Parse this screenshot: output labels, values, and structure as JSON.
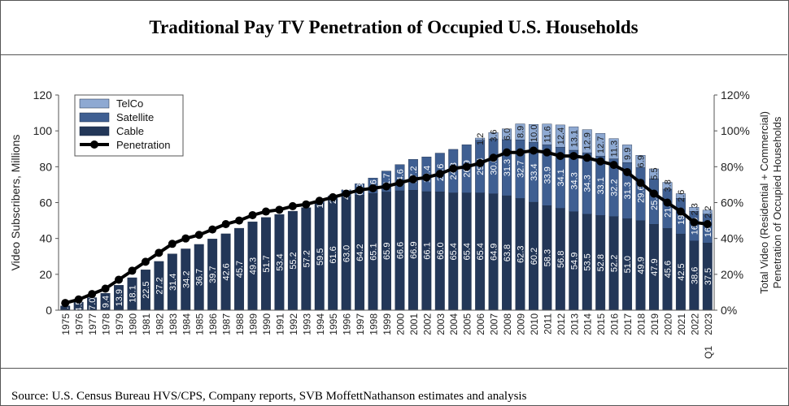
{
  "title": "Traditional Pay TV Penetration of Occupied U.S. Households",
  "source": "Source: U.S. Census Bureau HVS/CPS, Company reports, SVB MoffettNathanson estimates and analysis",
  "colors": {
    "cable": "#233758",
    "satellite": "#3f5f92",
    "telco": "#8ea9d2",
    "penetration": "#000000"
  },
  "chart_data": {
    "type": "bar",
    "title": "Traditional Pay TV Penetration of Occupied U.S. Households",
    "ylabel": "Video Subscribers, Millions",
    "y2label": [
      "Total Video (Residential + Commercial)",
      "Penetration of Occupied Households"
    ],
    "ylim": [
      0,
      120
    ],
    "y2lim": [
      0,
      1.2
    ],
    "yticks": [
      "0",
      "20",
      "40",
      "60",
      "80",
      "100",
      "120"
    ],
    "y2ticks": [
      "0%",
      "20%",
      "40%",
      "60%",
      "80%",
      "100%",
      "120%"
    ],
    "stacked": true,
    "legend_position": "top-left",
    "categories": [
      "1975",
      "1976",
      "1977",
      "1978",
      "1979",
      "1980",
      "1981",
      "1982",
      "1983",
      "1984",
      "1985",
      "1986",
      "1987",
      "1988",
      "1989",
      "1990",
      "1991",
      "1992",
      "1993",
      "1994",
      "1995",
      "1996",
      "1997",
      "1998",
      "1999",
      "2000",
      "2001",
      "2002",
      "2003",
      "2004",
      "2005",
      "2006",
      "2007",
      "2008",
      "2009",
      "2010",
      "2011",
      "2012",
      "2013",
      "2014",
      "2015",
      "2016",
      "2017",
      "2018",
      "2019",
      "2020",
      "2021",
      "2022",
      "Q1 2023"
    ],
    "series": [
      {
        "name": "Cable",
        "values": [
          2.4,
          4.5,
          7.0,
          9.4,
          13.9,
          18.1,
          22.5,
          27.2,
          31.4,
          34.2,
          36.7,
          39.7,
          42.6,
          45.7,
          49.3,
          51.7,
          53.4,
          55.2,
          57.2,
          59.5,
          61.6,
          63.0,
          64.2,
          65.1,
          65.9,
          66.6,
          66.9,
          66.1,
          66.0,
          65.4,
          65.4,
          65.4,
          64.9,
          63.8,
          62.3,
          60.2,
          58.3,
          56.8,
          54.9,
          53.5,
          52.8,
          52.2,
          51.0,
          49.9,
          47.9,
          45.6,
          42.5,
          38.6,
          37.5
        ]
      },
      {
        "name": "Satellite",
        "values": [
          0,
          0,
          0,
          0,
          0,
          0,
          0,
          0,
          0,
          0,
          0,
          0,
          0,
          0,
          0,
          0,
          0,
          0,
          0,
          1.5,
          2.2,
          4.1,
          6.3,
          8.6,
          11.7,
          14.6,
          17.2,
          19.4,
          21.6,
          24.3,
          26.9,
          29.4,
          30.6,
          31.3,
          32.7,
          33.4,
          33.9,
          34.1,
          34.3,
          34.3,
          33.1,
          32.2,
          31.3,
          29.6,
          25.4,
          21.9,
          19.9,
          16.5,
          16.1
        ]
      },
      {
        "name": "TelCo",
        "values": [
          0,
          0,
          0,
          0,
          0,
          0,
          0,
          0,
          0,
          0,
          0,
          0,
          0,
          0,
          0,
          0,
          0,
          0,
          0,
          0,
          0,
          0,
          0,
          0,
          0,
          0,
          0,
          0,
          0,
          0,
          0,
          1.2,
          3.6,
          6.0,
          8.9,
          10.0,
          11.6,
          12.4,
          13.1,
          12.9,
          12.7,
          11.3,
          9.9,
          6.9,
          5.5,
          3.8,
          2.6,
          2.3,
          2.2
        ]
      },
      {
        "name": "Penetration",
        "values": [
          0.04,
          0.06,
          0.09,
          0.12,
          0.17,
          0.22,
          0.27,
          0.32,
          0.37,
          0.4,
          0.42,
          0.45,
          0.48,
          0.5,
          0.53,
          0.55,
          0.56,
          0.58,
          0.59,
          0.61,
          0.63,
          0.65,
          0.67,
          0.68,
          0.69,
          0.71,
          0.73,
          0.74,
          0.76,
          0.79,
          0.8,
          0.82,
          0.85,
          0.88,
          0.88,
          0.89,
          0.88,
          0.86,
          0.86,
          0.85,
          0.83,
          0.81,
          0.77,
          0.71,
          0.65,
          0.6,
          0.55,
          0.49,
          0.48
        ]
      }
    ],
    "bar_labels": {
      "Cable": [
        "2.4",
        "4.5",
        "7.0",
        "9.4",
        "13.9",
        "18.1",
        "22.5",
        "27.2",
        "31.4",
        "34.2",
        "36.7",
        "39.7",
        "42.6",
        "45.7",
        "49.3",
        "51.7",
        "53.4",
        "55.2",
        "57.2",
        "59.5",
        "61.6",
        "63.0",
        "64.2",
        "65.1",
        "65.9",
        "66.6",
        "66.9",
        "66.1",
        "66.0",
        "65.4",
        "65.4",
        "65.4",
        "64.9",
        "63.8",
        "62.3",
        "60.2",
        "58.3",
        "56.8",
        "54.9",
        "53.5",
        "52.8",
        "52.2",
        "51.0",
        "49.9",
        "47.9",
        "45.6",
        "42.5",
        "38.6",
        "37.5"
      ],
      "Satellite": [
        "",
        "",
        "",
        "",
        "",
        "",
        "",
        "",
        "",
        "",
        "",
        "",
        "",
        "",
        "",
        "",
        "",
        "",
        "",
        "1.5",
        "2.2",
        "4.1",
        "6.3",
        "8.6",
        "11.7",
        "14.6",
        "17.2",
        "19.4",
        "21.6",
        "24.3",
        "26.9",
        "29.4",
        "30.6",
        "31.3",
        "32.7",
        "33.4",
        "33.9",
        "34.1",
        "34.3",
        "34.3",
        "33.1",
        "32.2",
        "31.3",
        "29.6",
        "25.4",
        "21.9",
        "19.9",
        "16.5",
        "16.1"
      ],
      "TelCo": [
        "",
        "",
        "",
        "",
        "",
        "",
        "",
        "",
        "",
        "",
        "",
        "",
        "",
        "",
        "",
        "",
        "",
        "",
        "",
        "",
        "",
        "",
        "",
        "",
        "",
        "",
        "",
        "",
        "",
        "",
        "",
        "1.2",
        "3.6",
        "6.0",
        "8.9",
        "10.0",
        "11.6",
        "12.4",
        "13.1",
        "12.9",
        "12.7",
        "11.3",
        "9.9",
        "6.9",
        "5.5",
        "3.8",
        "2.6",
        "2.3",
        "2.2"
      ]
    }
  }
}
